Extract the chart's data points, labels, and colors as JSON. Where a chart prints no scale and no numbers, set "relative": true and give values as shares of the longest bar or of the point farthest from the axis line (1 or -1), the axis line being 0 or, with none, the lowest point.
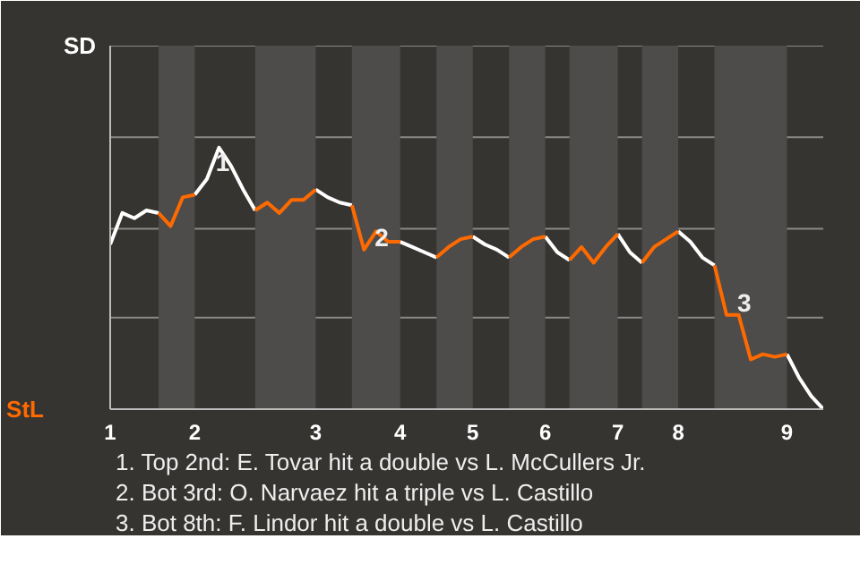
{
  "chart_data": {
    "type": "line",
    "relative": true,
    "categories": [
      "1",
      null,
      null,
      null,
      null,
      null,
      null,
      "2",
      null,
      null,
      null,
      null,
      null,
      null,
      null,
      null,
      null,
      "3",
      null,
      null,
      null,
      null,
      null,
      null,
      "4",
      null,
      null,
      null,
      null,
      null,
      "5",
      null,
      null,
      null,
      null,
      null,
      "6",
      null,
      null,
      null,
      null,
      null,
      "7",
      null,
      null,
      null,
      null,
      "8",
      null,
      null,
      null,
      null,
      null,
      null,
      null,
      null,
      "9",
      null,
      null,
      null
    ],
    "ref_lines": [
      {
        "axis": "y",
        "value": 0.35
      },
      {
        "axis": "y",
        "value": 0.69
      },
      {
        "axis": "y",
        "value": 1.04
      },
      {
        "axis": "y",
        "value": 1.39
      }
    ],
    "series": [
      {
        "color": "#ffffff",
        "values": [
          0.63,
          0.75,
          0.73,
          0.76,
          0.75,
          null,
          null,
          0.82,
          0.88,
          1,
          0.93,
          0.84,
          0.76,
          null,
          null,
          null,
          null,
          0.84,
          0.81,
          0.79,
          0.78,
          null,
          null,
          null,
          0.64,
          0.62,
          0.6,
          0.58,
          null,
          null,
          0.66,
          0.63,
          0.61,
          0.58,
          null,
          null,
          0.66,
          0.6,
          0.57,
          null,
          null,
          null,
          0.67,
          0.6,
          0.56,
          null,
          null,
          0.68,
          0.64,
          0.58,
          0.55,
          null,
          null,
          null,
          null,
          null,
          0.21,
          0.12,
          0.05,
          0
        ]
      },
      {
        "color": "#ff6a00",
        "values": [
          null,
          null,
          null,
          null,
          0.75,
          0.7,
          0.81,
          0.82,
          null,
          null,
          null,
          null,
          0.76,
          0.79,
          0.75,
          0.8,
          0.8,
          0.84,
          null,
          null,
          0.78,
          0.61,
          0.68,
          0.64,
          0.64,
          null,
          null,
          0.58,
          0.62,
          0.65,
          0.66,
          null,
          null,
          0.58,
          0.62,
          0.65,
          0.66,
          null,
          0.57,
          0.62,
          0.56,
          0.62,
          0.67,
          null,
          0.56,
          0.62,
          0.65,
          0.68,
          null,
          null,
          0.55,
          0.36,
          0.36,
          0.19,
          0.21,
          0.2,
          0.21,
          null,
          null,
          null
        ]
      }
    ],
    "annotations": [
      "SD",
      "StL",
      {
        "text": "1",
        "y": 1
      },
      {
        "text": "2",
        "y": 0.61
      },
      {
        "text": "3",
        "y": 0.36
      },
      "1. Top 2nd: E. Tovar hit a double vs L. McCullers Jr.",
      "2. Bot 3rd: O. Narvaez hit a triple vs L. Castillo",
      "3. Bot 8th: F. Lindor hit a double vs L. Castillo"
    ]
  }
}
